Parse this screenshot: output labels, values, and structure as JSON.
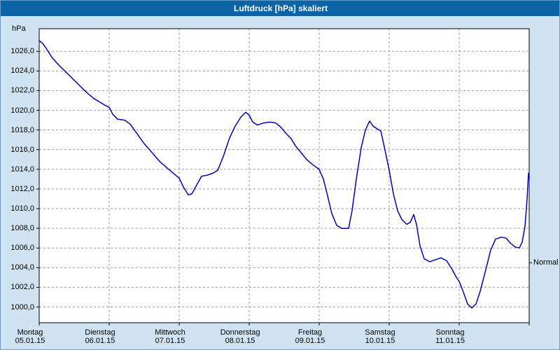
{
  "window": {
    "title": "Luftdruck [hPa] skaliert"
  },
  "colors": {
    "titlebar_bg": "#0a64a6",
    "window_bg": "#cfe3f2",
    "plot_bg": "#ffffff",
    "grid": "#999999",
    "border": "#000000",
    "line": "#0000bb",
    "text": "#000000",
    "title_text": "#ffffff"
  },
  "chart_data": {
    "type": "line",
    "title": "Luftdruck [hPa] skaliert",
    "xlabel": "",
    "ylabel": "hPa",
    "grid": "dashed",
    "legend_position": "none",
    "ylim": [
      998.4,
      1028.3
    ],
    "x_range_days": [
      0,
      7
    ],
    "y_ticks": [
      {
        "value": 1026,
        "label": "1026,0"
      },
      {
        "value": 1024,
        "label": "1024,0"
      },
      {
        "value": 1022,
        "label": "1022,0"
      },
      {
        "value": 1020,
        "label": "1020,0"
      },
      {
        "value": 1018,
        "label": "1018,0"
      },
      {
        "value": 1016,
        "label": "1016,0"
      },
      {
        "value": 1014,
        "label": "1014,0"
      },
      {
        "value": 1012,
        "label": "1012,0"
      },
      {
        "value": 1010,
        "label": "1010,0"
      },
      {
        "value": 1008,
        "label": "1008,0"
      },
      {
        "value": 1006,
        "label": "1006,0"
      },
      {
        "value": 1004,
        "label": "1004,0"
      },
      {
        "value": 1002,
        "label": "1002,0"
      },
      {
        "value": 1000,
        "label": "1000,0"
      }
    ],
    "x_categories": [
      {
        "name": "Montag",
        "date": "05.01.15"
      },
      {
        "name": "Dienstag",
        "date": "06.01.15"
      },
      {
        "name": "Mittwoch",
        "date": "07.01.15"
      },
      {
        "name": "Donnerstag",
        "date": "08.01.15"
      },
      {
        "name": "Freitag",
        "date": "09.01.15"
      },
      {
        "name": "Samstag",
        "date": "10.01.15"
      },
      {
        "name": "Sonntag",
        "date": "11.01.15"
      }
    ],
    "annotations": [
      {
        "label": "Normal",
        "value": 1004.5,
        "side": "right"
      }
    ],
    "series": [
      {
        "name": "Luftdruck [hPa] skaliert",
        "color": "#0000bb",
        "points": [
          [
            0.0,
            1027.1
          ],
          [
            0.05,
            1026.8
          ],
          [
            0.1,
            1026.3
          ],
          [
            0.18,
            1025.4
          ],
          [
            0.28,
            1024.6
          ],
          [
            0.38,
            1023.9
          ],
          [
            0.48,
            1023.2
          ],
          [
            0.58,
            1022.5
          ],
          [
            0.68,
            1021.8
          ],
          [
            0.78,
            1021.2
          ],
          [
            0.85,
            1020.9
          ],
          [
            0.92,
            1020.6
          ],
          [
            1.0,
            1020.3
          ],
          [
            1.05,
            1019.6
          ],
          [
            1.12,
            1019.1
          ],
          [
            1.22,
            1019.0
          ],
          [
            1.3,
            1018.6
          ],
          [
            1.4,
            1017.6
          ],
          [
            1.5,
            1016.6
          ],
          [
            1.6,
            1015.8
          ],
          [
            1.72,
            1014.8
          ],
          [
            1.85,
            1014.0
          ],
          [
            1.95,
            1013.4
          ],
          [
            2.0,
            1013.1
          ],
          [
            2.06,
            1012.2
          ],
          [
            2.13,
            1011.4
          ],
          [
            2.18,
            1011.5
          ],
          [
            2.25,
            1012.4
          ],
          [
            2.32,
            1013.3
          ],
          [
            2.4,
            1013.4
          ],
          [
            2.48,
            1013.6
          ],
          [
            2.55,
            1013.9
          ],
          [
            2.63,
            1015.3
          ],
          [
            2.72,
            1017.2
          ],
          [
            2.8,
            1018.4
          ],
          [
            2.88,
            1019.3
          ],
          [
            2.95,
            1019.8
          ],
          [
            3.0,
            1019.5
          ],
          [
            3.05,
            1018.8
          ],
          [
            3.12,
            1018.5
          ],
          [
            3.2,
            1018.7
          ],
          [
            3.3,
            1018.8
          ],
          [
            3.38,
            1018.7
          ],
          [
            3.45,
            1018.3
          ],
          [
            3.52,
            1017.7
          ],
          [
            3.6,
            1017.1
          ],
          [
            3.66,
            1016.4
          ],
          [
            3.74,
            1015.7
          ],
          [
            3.82,
            1015.0
          ],
          [
            3.9,
            1014.5
          ],
          [
            4.0,
            1014.0
          ],
          [
            4.06,
            1013.0
          ],
          [
            4.12,
            1011.3
          ],
          [
            4.18,
            1009.5
          ],
          [
            4.25,
            1008.3
          ],
          [
            4.32,
            1008.0
          ],
          [
            4.42,
            1008.0
          ],
          [
            4.47,
            1009.8
          ],
          [
            4.53,
            1013.0
          ],
          [
            4.6,
            1016.2
          ],
          [
            4.66,
            1018.0
          ],
          [
            4.72,
            1018.9
          ],
          [
            4.77,
            1018.4
          ],
          [
            4.83,
            1018.1
          ],
          [
            4.88,
            1017.9
          ],
          [
            4.93,
            1016.3
          ],
          [
            5.0,
            1013.9
          ],
          [
            5.06,
            1011.5
          ],
          [
            5.12,
            1009.8
          ],
          [
            5.18,
            1008.9
          ],
          [
            5.25,
            1008.4
          ],
          [
            5.3,
            1008.6
          ],
          [
            5.35,
            1009.4
          ],
          [
            5.39,
            1008.4
          ],
          [
            5.44,
            1006.2
          ],
          [
            5.5,
            1004.9
          ],
          [
            5.58,
            1004.6
          ],
          [
            5.66,
            1004.8
          ],
          [
            5.74,
            1005.0
          ],
          [
            5.82,
            1004.7
          ],
          [
            5.9,
            1003.8
          ],
          [
            5.96,
            1003.0
          ],
          [
            6.0,
            1002.6
          ],
          [
            6.06,
            1001.5
          ],
          [
            6.12,
            1000.3
          ],
          [
            6.18,
            999.9
          ],
          [
            6.24,
            1000.3
          ],
          [
            6.3,
            1001.6
          ],
          [
            6.38,
            1003.8
          ],
          [
            6.45,
            1005.8
          ],
          [
            6.52,
            1006.9
          ],
          [
            6.6,
            1007.1
          ],
          [
            6.67,
            1007.0
          ],
          [
            6.73,
            1006.5
          ],
          [
            6.8,
            1006.1
          ],
          [
            6.86,
            1006.0
          ],
          [
            6.9,
            1006.6
          ],
          [
            6.94,
            1008.2
          ],
          [
            6.97,
            1011.0
          ],
          [
            6.99,
            1013.6
          ],
          [
            7.0,
            1013.2
          ]
        ]
      }
    ]
  }
}
